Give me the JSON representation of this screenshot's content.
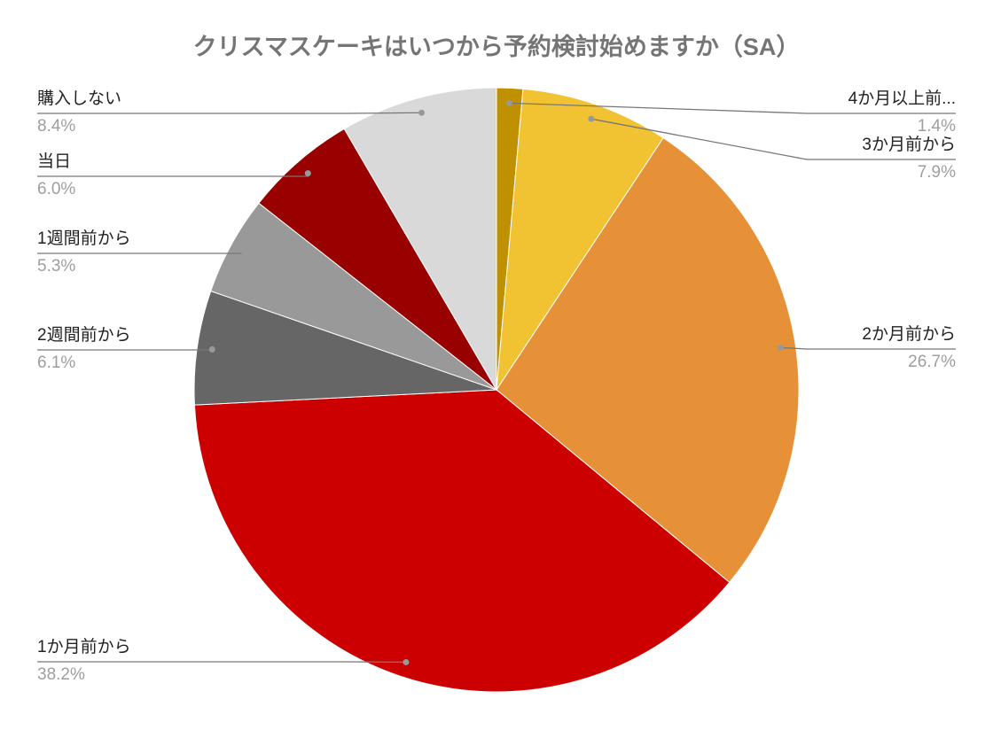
{
  "chart_data": {
    "type": "pie",
    "title": "クリスマスケーキはいつから予約検討始めますか（SA）",
    "categories": [
      "4か月以上前...",
      "3か月前から",
      "2か月前から",
      "1か月前から",
      "2週間前から",
      "1週間前から",
      "当日",
      "購入しない"
    ],
    "values": [
      1.4,
      7.9,
      26.7,
      38.2,
      6.1,
      5.3,
      6.0,
      8.4
    ],
    "value_labels": [
      "1.4%",
      "7.9%",
      "26.7%",
      "38.2%",
      "6.1%",
      "5.3%",
      "6.0%",
      "8.4%"
    ],
    "colors": [
      "#bf9000",
      "#f1c232",
      "#e69138",
      "#cc0000",
      "#666666",
      "#999999",
      "#990000",
      "#d9d9d9"
    ]
  }
}
